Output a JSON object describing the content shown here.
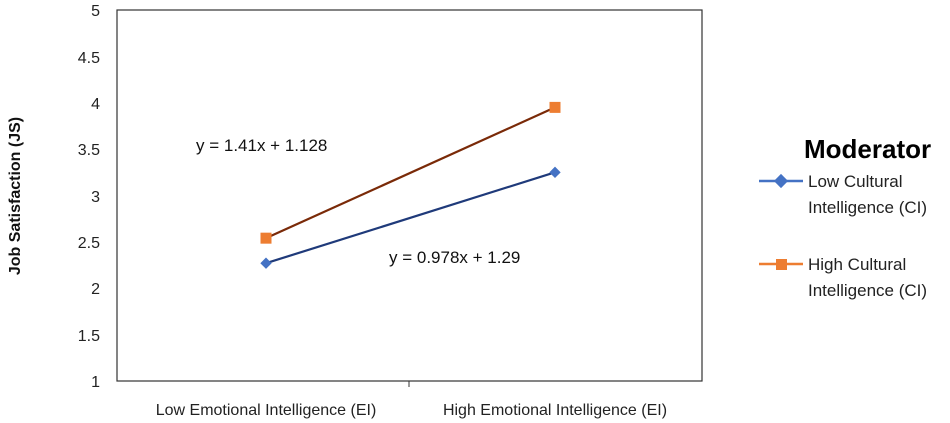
{
  "chart_data": {
    "type": "line",
    "categories": [
      "Low Emotional Intelligence (EI)",
      "High Emotional Intelligence (EI)"
    ],
    "ylabel": "Job Satisfaction (JS)",
    "xlabel": "",
    "ylim": [
      1,
      5
    ],
    "yticks": [
      "1",
      "1.5",
      "2",
      "2.5",
      "3",
      "3.5",
      "4",
      "4.5",
      "5"
    ],
    "grid": false,
    "legend_title": "Moderator",
    "legend_position": "right",
    "series": [
      {
        "name_line1": "Low Cultural",
        "name_line2": "Intelligence (CI)",
        "marker": "diamond",
        "values": [
          2.27,
          3.25
        ],
        "equation": "y = 0.978x + 1.29",
        "color": "#4472C4",
        "line_color": "#1F3A7A"
      },
      {
        "name_line1": "High Cultural",
        "name_line2": "Intelligence (CI)",
        "marker": "square",
        "values": [
          2.54,
          3.95
        ],
        "equation": "y = 1.41x + 1.128",
        "color": "#ED7D31",
        "line_color": "#7A2A08"
      }
    ]
  }
}
